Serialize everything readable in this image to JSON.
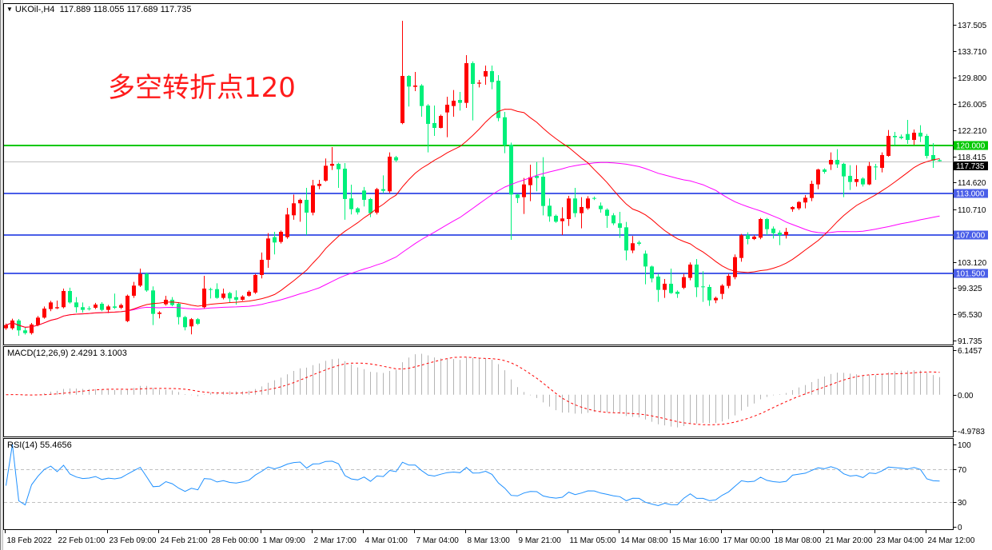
{
  "header": {
    "symbol_label": "UKOil-,H4",
    "ohlc": "117.889 118.055 117.689 117.735",
    "icon": "dropdown-triangle-icon"
  },
  "annotation": "多空转折点120",
  "chart_data": {
    "type": "candlestick",
    "symbol": "UKOil-",
    "timeframe": "H4",
    "price_axis": {
      "range": [
        91.735,
        137.505
      ],
      "ticks": [
        "137.505",
        "133.710",
        "129.800",
        "126.005",
        "122.210",
        "118.415",
        "114.620",
        "110.710",
        "103.120",
        "99.325",
        "95.530",
        "91.735"
      ]
    },
    "time_axis": {
      "labels": [
        "18 Feb 2022",
        "22 Feb 01:00",
        "23 Feb 09:00",
        "24 Feb 21:00",
        "28 Feb 00:00",
        "1 Mar 09:00",
        "2 Mar 17:00",
        "4 Mar 01:00",
        "7 Mar 04:00",
        "8 Mar 13:00",
        "9 Mar 21:00",
        "11 Mar 05:00",
        "14 Mar 08:00",
        "15 Mar 16:00",
        "17 Mar 00:00",
        "18 Mar 08:00",
        "21 Mar 20:00",
        "23 Mar 04:00",
        "24 Mar 12:00"
      ],
      "bars_per_label": 8
    },
    "candles_format": [
      "open",
      "high",
      "low",
      "close"
    ],
    "candles": [
      [
        93.52,
        94.2,
        93.3,
        93.98
      ],
      [
        93.52,
        94.9,
        93.3,
        94.64
      ],
      [
        94.64,
        94.87,
        92.43,
        93.21
      ],
      [
        93.21,
        93.6,
        92.6,
        92.82
      ],
      [
        92.82,
        94.29,
        92.6,
        94.06
      ],
      [
        93.98,
        95.3,
        93.8,
        95.06
      ],
      [
        95.06,
        96.68,
        94.9,
        96.37
      ],
      [
        96.3,
        97.5,
        96.0,
        97.26
      ],
      [
        96.41,
        97.53,
        96.3,
        96.57
      ],
      [
        96.57,
        99.27,
        96.4,
        98.92
      ],
      [
        98.92,
        99.39,
        97.1,
        97.26
      ],
      [
        97.26,
        98.03,
        95.79,
        96.57
      ],
      [
        96.57,
        97.26,
        95.79,
        96.18
      ],
      [
        96.4,
        96.7,
        96.1,
        96.37
      ],
      [
        96.49,
        97.2,
        96.3,
        96.95
      ],
      [
        97.07,
        97.3,
        96.0,
        96.18
      ],
      [
        96.18,
        96.9,
        95.72,
        96.68
      ],
      [
        96.68,
        98.54,
        96.3,
        96.49
      ],
      [
        96.49,
        97.1,
        96.3,
        96.88
      ],
      [
        94.56,
        98.4,
        94.4,
        98.23
      ],
      [
        98.23,
        100.24,
        97.92,
        99.7
      ],
      [
        99.7,
        102.17,
        99.5,
        101.4
      ],
      [
        101.4,
        101.6,
        98.8,
        99.0
      ],
      [
        99.0,
        99.58,
        93.98,
        95.6
      ],
      [
        95.6,
        96.0,
        94.95,
        95.79
      ],
      [
        96.99,
        98.23,
        96.8,
        97.65
      ],
      [
        97.65,
        98.03,
        96.7,
        96.88
      ],
      [
        97.07,
        97.3,
        94.06,
        95.14
      ],
      [
        95.14,
        95.3,
        93.21,
        93.67
      ],
      [
        93.79,
        95.0,
        92.63,
        94.83
      ],
      [
        94.83,
        95.0,
        94.0,
        94.17
      ],
      [
        96.57,
        101.12,
        96.4,
        99.27
      ],
      [
        99.19,
        99.39,
        97.84,
        99.08
      ],
      [
        99.19,
        100.04,
        97.8,
        97.92
      ],
      [
        97.92,
        99.27,
        97.7,
        98.54
      ],
      [
        98.62,
        98.8,
        97.26,
        97.84
      ],
      [
        98.03,
        99.0,
        96.95,
        97.65
      ],
      [
        97.65,
        98.3,
        97.5,
        98.11
      ],
      [
        98.23,
        99.0,
        98.1,
        98.81
      ],
      [
        98.69,
        101.4,
        98.5,
        101.24
      ],
      [
        101.24,
        104.49,
        100.74,
        103.44
      ],
      [
        103.44,
        107.3,
        102.28,
        106.53
      ],
      [
        106.72,
        107.5,
        104.22,
        105.95
      ],
      [
        106.03,
        107.7,
        105.8,
        107.5
      ],
      [
        106.72,
        110.97,
        106.5,
        110.01
      ],
      [
        109.89,
        112.9,
        109.24,
        111.63
      ],
      [
        111.63,
        112.3,
        108.96,
        112.13
      ],
      [
        112.13,
        113.87,
        107.03,
        110.28
      ],
      [
        110.28,
        115.03,
        109.89,
        114.22
      ],
      [
        114.14,
        115.03,
        113.68,
        114.45
      ],
      [
        114.91,
        118.12,
        114.76,
        117.07
      ],
      [
        117.07,
        119.78,
        116.46,
        117.35
      ],
      [
        117.35,
        117.5,
        113.87,
        116.57
      ],
      [
        116.65,
        117.46,
        109.24,
        112.25
      ],
      [
        112.33,
        114.33,
        110.01,
        110.78
      ],
      [
        110.9,
        111.05,
        110.0,
        110.32
      ],
      [
        113.48,
        113.99,
        111.17,
        112.13
      ],
      [
        112.25,
        112.4,
        109.62,
        110.2
      ],
      [
        110.28,
        113.87,
        110.01,
        113.68
      ],
      [
        113.68,
        115.68,
        113.1,
        113.44
      ],
      [
        113.37,
        119.01,
        113.1,
        118.39
      ],
      [
        118.31,
        118.5,
        117.62,
        117.85
      ],
      [
        123.26,
        138.08,
        123.1,
        130.09
      ],
      [
        130.09,
        130.2,
        125.65,
        128.55
      ],
      [
        128.51,
        130.67,
        127.89,
        128.7
      ],
      [
        128.7,
        128.9,
        124.18,
        125.73
      ],
      [
        125.8,
        126.0,
        119.01,
        123.14
      ],
      [
        123.26,
        125.8,
        121.4,
        122.56
      ],
      [
        122.56,
        124.49,
        122.48,
        124.3
      ],
      [
        124.8,
        127.08,
        121.21,
        125.92
      ],
      [
        125.73,
        128.04,
        124.18,
        126.5
      ],
      [
        126.61,
        127.77,
        125.07,
        126.19
      ],
      [
        126.19,
        133.1,
        125.46,
        131.94
      ],
      [
        131.94,
        132.21,
        123.64,
        128.93
      ],
      [
        128.97,
        129.51,
        128.43,
        129.12
      ],
      [
        130.01,
        131.6,
        128.82,
        130.79
      ],
      [
        130.79,
        131.6,
        128.16,
        129.2
      ],
      [
        129.4,
        130.21,
        123.53,
        123.99
      ],
      [
        124.1,
        124.88,
        118.89,
        120.05
      ],
      [
        120.13,
        120.43,
        106.34,
        112.9
      ],
      [
        112.9,
        113.0,
        111.67,
        112.4
      ],
      [
        112.52,
        115.3,
        110.08,
        114.37
      ],
      [
        114.26,
        117.23,
        111.94,
        115.41
      ],
      [
        115.61,
        117.62,
        113.37,
        115.3
      ],
      [
        115.49,
        118.31,
        109.89,
        111.24
      ],
      [
        111.28,
        112.33,
        108.96,
        109.74
      ],
      [
        109.82,
        110.0,
        108.8,
        108.96
      ],
      [
        109.04,
        111.05,
        107.03,
        109.43
      ],
      [
        109.35,
        112.71,
        108.35,
        112.33
      ],
      [
        112.33,
        113.87,
        109.62,
        110.2
      ],
      [
        110.2,
        112.52,
        108.0,
        111.09
      ],
      [
        110.9,
        112.67,
        110.7,
        112.33
      ],
      [
        112.4,
        112.6,
        112.1,
        112.29
      ],
      [
        111.28,
        111.75,
        110.28,
        110.78
      ],
      [
        110.7,
        110.9,
        108.08,
        109.82
      ],
      [
        109.89,
        110.2,
        108.46,
        108.73
      ],
      [
        108.73,
        110.39,
        106.61,
        108.08
      ],
      [
        108.15,
        108.93,
        103.37,
        104.79
      ],
      [
        104.79,
        106.88,
        104.41,
        105.84
      ],
      [
        105.95,
        106.22,
        105.49,
        105.76
      ],
      [
        104.33,
        104.79,
        99.89,
        102.47
      ],
      [
        102.47,
        102.6,
        100.16,
        100.74
      ],
      [
        101.01,
        101.4,
        97.34,
        99.08
      ],
      [
        99.08,
        100.66,
        97.92,
        99.97
      ],
      [
        99.97,
        102.17,
        98.5,
        98.62
      ],
      [
        98.81,
        99.0,
        97.92,
        98.5
      ],
      [
        99.39,
        101.4,
        99.19,
        100.93
      ],
      [
        100.82,
        103.06,
        100.47,
        102.75
      ],
      [
        102.75,
        103.56,
        98.03,
        99.46
      ],
      [
        99.58,
        101.78,
        97.34,
        99.46
      ],
      [
        99.5,
        99.85,
        96.76,
        97.57
      ],
      [
        97.57,
        98.11,
        97.15,
        97.92
      ],
      [
        98.5,
        99.9,
        97.73,
        99.7
      ],
      [
        99.66,
        101.4,
        99.31,
        101.12
      ],
      [
        100.93,
        104.22,
        100.62,
        103.83
      ],
      [
        103.71,
        107.19,
        103.17,
        107.0
      ],
      [
        107.0,
        107.42,
        105.68,
        106.45
      ],
      [
        106.45,
        107.0,
        106.3,
        106.8
      ],
      [
        106.65,
        109.5,
        106.42,
        109.35
      ],
      [
        109.35,
        109.5,
        107.03,
        107.88
      ],
      [
        107.96,
        108.27,
        106.53,
        107.3
      ],
      [
        107.38,
        107.69,
        105.57,
        107.03
      ],
      [
        107.03,
        108.08,
        106.53,
        107.5
      ],
      [
        110.78,
        111.2,
        110.4,
        111.09
      ],
      [
        110.9,
        111.94,
        110.66,
        111.82
      ],
      [
        111.75,
        112.83,
        110.9,
        112.44
      ],
      [
        112.4,
        114.91,
        111.94,
        114.45
      ],
      [
        114.37,
        116.65,
        113.68,
        116.53
      ],
      [
        116.53,
        116.7,
        115.92,
        116.19
      ],
      [
        117.27,
        119.01,
        116.46,
        117.92
      ],
      [
        117.92,
        119.47,
        116.77,
        117.27
      ],
      [
        117.35,
        117.5,
        112.52,
        115.53
      ],
      [
        115.61,
        117.15,
        113.56,
        114.72
      ],
      [
        114.72,
        117.15,
        114.06,
        115.14
      ],
      [
        115.22,
        115.4,
        114.06,
        114.37
      ],
      [
        114.37,
        117.62,
        114.26,
        117.04
      ],
      [
        116.96,
        117.35,
        115.03,
        116.84
      ],
      [
        116.77,
        119.01,
        116.11,
        118.62
      ],
      [
        118.5,
        122.25,
        118.39,
        121.4
      ],
      [
        121.4,
        121.98,
        120.05,
        121.21
      ],
      [
        121.29,
        121.6,
        120.9,
        121.09
      ],
      [
        121.67,
        123.72,
        120.24,
        120.82
      ],
      [
        120.82,
        122.33,
        120.13,
        121.86
      ],
      [
        121.86,
        122.95,
        120.51,
        121.32
      ],
      [
        121.4,
        121.67,
        118.12,
        118.5
      ],
      [
        118.62,
        120.36,
        116.77,
        117.81
      ],
      [
        117.889,
        118.055,
        117.689,
        117.735
      ]
    ],
    "horizontal_lines": [
      {
        "price": 120.0,
        "label": "120.000",
        "color": "#00c800"
      },
      {
        "price": 113.0,
        "label": "113.000",
        "color": "#4a5ee8"
      },
      {
        "price": 107.0,
        "label": "107.000",
        "color": "#4a5ee8"
      },
      {
        "price": 101.5,
        "label": "101.500",
        "color": "#4a5ee8"
      }
    ],
    "current_price": {
      "value": 117.735,
      "label": "117.735"
    },
    "colors": {
      "bull_candle": "#ff0000",
      "bear_candle": "#00f07a",
      "ma_fast": "#ff0000",
      "ma_slow": "#ff00ff",
      "macd_histogram": "#b4b4b4",
      "macd_signal": "#ff0000",
      "rsi_line": "#1e90ff"
    },
    "macd": {
      "label": "MACD(12,26,9) 2.4291 3.1003",
      "range": [
        -4.9783,
        6.1457
      ],
      "ticks": [
        "6.1457",
        "0.00",
        "-4.9783"
      ]
    },
    "rsi": {
      "label": "RSI(14) 55.4656",
      "range": [
        0,
        100
      ],
      "ticks": [
        "100",
        "70",
        "30",
        "0"
      ],
      "levels": [
        70,
        30
      ]
    }
  }
}
